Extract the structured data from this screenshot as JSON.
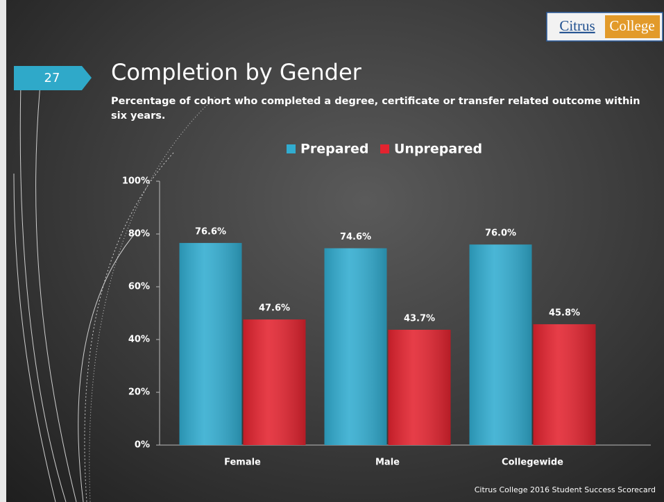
{
  "slide": {
    "page_number": 27,
    "logo_left": "Citrus",
    "logo_right": "College",
    "footer": "Citrus College 2016 Student Success Scorecard"
  },
  "chart_data": {
    "type": "bar",
    "title": "Completion by Gender",
    "subtitle": "Percentage of cohort who completed a degree, certificate or transfer related outcome within six years.",
    "categories": [
      "Female",
      "Male",
      "Collegewide"
    ],
    "series": [
      {
        "name": "Prepared",
        "color": "#31acd0",
        "values": [
          76.6,
          74.6,
          76.0
        ],
        "value_labels": [
          "76.6%",
          "74.6%",
          "76.0%"
        ]
      },
      {
        "name": "Unprepared",
        "color": "#e3232f",
        "values": [
          47.6,
          43.7,
          45.8
        ],
        "value_labels": [
          "47.6%",
          "43.7%",
          "45.8%"
        ]
      }
    ],
    "ylim": [
      0,
      100
    ],
    "yticks": [
      {
        "value": 0,
        "label": "0%"
      },
      {
        "value": 20,
        "label": "20%"
      },
      {
        "value": 40,
        "label": "40%"
      },
      {
        "value": 60,
        "label": "60%"
      },
      {
        "value": 80,
        "label": "80%"
      },
      {
        "value": 100,
        "label": "100%"
      }
    ],
    "legend": "top",
    "grid": false
  }
}
